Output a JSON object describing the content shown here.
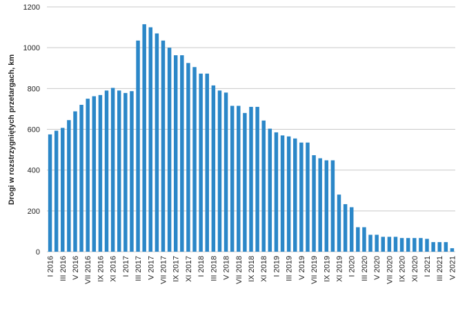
{
  "chart_data": {
    "type": "bar",
    "y_label": "Drogi w rozstrzygniętych przetargach, km",
    "categories": [
      "I 2016",
      null,
      "III 2016",
      null,
      "V 2016",
      null,
      "VII 2016",
      null,
      "IX 2016",
      null,
      "XI 2016",
      null,
      "I 2017",
      null,
      "III 2017",
      null,
      "V 2017",
      null,
      "VII 2017",
      null,
      "IX 2017",
      null,
      "XI 2017",
      null,
      "I 2018",
      null,
      "III 2018",
      null,
      "V 2018",
      null,
      "VII 2018",
      null,
      "IX 2018",
      null,
      "XI 2018",
      null,
      "I 2019",
      null,
      "III 2019",
      null,
      "V 2019",
      null,
      "VII 2019",
      null,
      "IX 2019",
      null,
      "XI 2019",
      null,
      "I 2020",
      null,
      "III 2020",
      null,
      "V 2020",
      null,
      "VII 2020",
      null,
      "IX 2020",
      null,
      "XI 2020",
      null,
      "I 2021",
      null,
      "III 2021",
      null,
      "V 2021"
    ],
    "values": [
      575,
      593,
      607,
      645,
      688,
      720,
      750,
      762,
      768,
      790,
      803,
      790,
      778,
      787,
      1035,
      1115,
      1100,
      1070,
      1035,
      1000,
      963,
      963,
      925,
      905,
      873,
      873,
      815,
      790,
      780,
      715,
      715,
      680,
      710,
      710,
      643,
      603,
      585,
      570,
      565,
      555,
      535,
      535,
      473,
      458,
      448,
      448,
      280,
      233,
      218,
      120,
      120,
      83,
      83,
      73,
      73,
      73,
      67,
      67,
      67,
      67,
      63,
      47,
      47,
      47,
      17
    ],
    "color": "#2b87c8",
    "ylim": [
      0,
      1200
    ],
    "yticks": [
      0,
      200,
      400,
      600,
      800,
      1000,
      1200
    ],
    "grid": true
  }
}
